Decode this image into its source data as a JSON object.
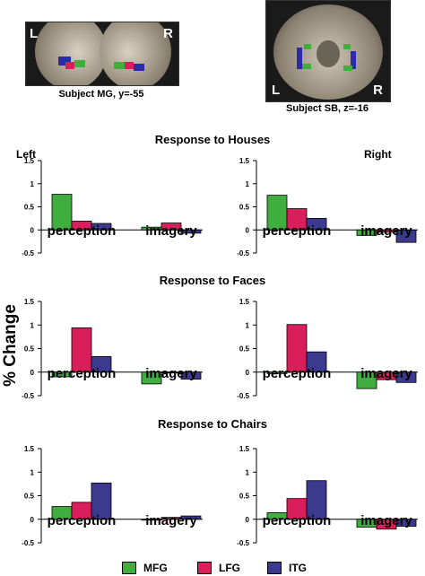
{
  "images": {
    "mg": {
      "left_marker": "L",
      "right_marker": "R",
      "caption": "Subject MG, y=-55"
    },
    "sb": {
      "left_marker": "L",
      "right_marker": "R",
      "caption": "Subject SB, z=-16"
    }
  },
  "side_labels": {
    "left": "Left",
    "right": "Right"
  },
  "y_axis_label": "% Change",
  "colors": {
    "MFG": "#3fae3f",
    "LFG": "#d81e5b",
    "ITG": "#3b3a8f"
  },
  "legend": [
    "MFG",
    "LFG",
    "ITG"
  ],
  "chart_data": [
    {
      "type": "bar",
      "title": "Response to Houses",
      "hemisphere": "Left",
      "categories": [
        "perception",
        "imagery"
      ],
      "series": [
        {
          "name": "MFG",
          "values": [
            0.77,
            0.06
          ]
        },
        {
          "name": "LFG",
          "values": [
            0.19,
            0.15
          ]
        },
        {
          "name": "ITG",
          "values": [
            0.14,
            -0.07
          ]
        }
      ],
      "ylim": [
        -0.5,
        1.5
      ],
      "yticks": [
        "1.5",
        "1",
        "0.5",
        "0",
        "-0.5"
      ]
    },
    {
      "type": "bar",
      "title": "Response to Houses",
      "hemisphere": "Right",
      "categories": [
        "perception",
        "imagery"
      ],
      "series": [
        {
          "name": "MFG",
          "values": [
            0.75,
            -0.12
          ]
        },
        {
          "name": "LFG",
          "values": [
            0.46,
            -0.05
          ]
        },
        {
          "name": "ITG",
          "values": [
            0.25,
            -0.27
          ]
        }
      ],
      "ylim": [
        -0.5,
        1.5
      ],
      "yticks": [
        "1.5",
        "1",
        "0.5",
        "0",
        "-0.5"
      ]
    },
    {
      "type": "bar",
      "title": "Response to Faces",
      "hemisphere": "Left",
      "categories": [
        "perception",
        "imagery"
      ],
      "series": [
        {
          "name": "MFG",
          "values": [
            -0.1,
            -0.25
          ]
        },
        {
          "name": "LFG",
          "values": [
            0.94,
            -0.01
          ]
        },
        {
          "name": "ITG",
          "values": [
            0.33,
            -0.15
          ]
        }
      ],
      "ylim": [
        -0.5,
        1.5
      ],
      "yticks": [
        "1.5",
        "1",
        "0.5",
        "0",
        "-0.5"
      ]
    },
    {
      "type": "bar",
      "title": "Response to Faces",
      "hemisphere": "Right",
      "categories": [
        "perception",
        "imagery"
      ],
      "series": [
        {
          "name": "MFG",
          "values": [
            -0.03,
            -0.35
          ]
        },
        {
          "name": "LFG",
          "values": [
            1.01,
            -0.16
          ]
        },
        {
          "name": "ITG",
          "values": [
            0.43,
            -0.22
          ]
        }
      ],
      "ylim": [
        -0.5,
        1.5
      ],
      "yticks": [
        "1.5",
        "1",
        "0.5",
        "0",
        "-0.5"
      ]
    },
    {
      "type": "bar",
      "title": "Response to Chairs",
      "hemisphere": "Left",
      "categories": [
        "perception",
        "imagery"
      ],
      "series": [
        {
          "name": "MFG",
          "values": [
            0.27,
            -0.02
          ]
        },
        {
          "name": "LFG",
          "values": [
            0.36,
            0.04
          ]
        },
        {
          "name": "ITG",
          "values": [
            0.77,
            0.07
          ]
        }
      ],
      "ylim": [
        -0.5,
        1.5
      ],
      "yticks": [
        "1.5",
        "1",
        "0.5",
        "0",
        "-0.5"
      ]
    },
    {
      "type": "bar",
      "title": "Response to Chairs",
      "hemisphere": "Right",
      "categories": [
        "perception",
        "imagery"
      ],
      "series": [
        {
          "name": "MFG",
          "values": [
            0.14,
            -0.17
          ]
        },
        {
          "name": "LFG",
          "values": [
            0.44,
            -0.21
          ]
        },
        {
          "name": "ITG",
          "values": [
            0.82,
            -0.15
          ]
        }
      ],
      "ylim": [
        -0.5,
        1.5
      ],
      "yticks": [
        "1.5",
        "1",
        "0.5",
        "0",
        "-0.5"
      ]
    }
  ]
}
